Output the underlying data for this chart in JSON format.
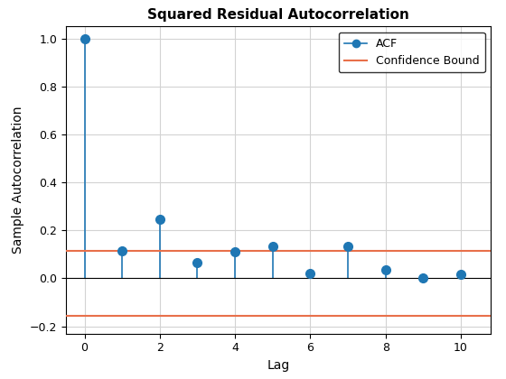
{
  "title": "Squared Residual Autocorrelation",
  "xlabel": "Lag",
  "ylabel": "Sample Autocorrelation",
  "lags": [
    0,
    1,
    2,
    3,
    4,
    5,
    6,
    7,
    8,
    9,
    10
  ],
  "acf_values": [
    1.0,
    0.115,
    0.245,
    0.065,
    0.11,
    0.135,
    0.02,
    0.135,
    0.035,
    0.0,
    0.015
  ],
  "conf_upper": 0.115,
  "conf_lower": -0.155,
  "stem_color": "#1f77b4",
  "conf_color": "#e8704a",
  "marker_size": 7,
  "ylim": [
    -0.23,
    1.05
  ],
  "xlim": [
    -0.5,
    10.8
  ],
  "grid_color": "#d3d3d3",
  "background_color": "#ffffff",
  "title_fontsize": 11,
  "label_fontsize": 10,
  "tick_fontsize": 9,
  "legend_fontsize": 9,
  "yticks": [
    -0.2,
    0.0,
    0.2,
    0.4,
    0.6,
    0.8,
    1.0
  ],
  "xticks": [
    0,
    2,
    4,
    6,
    8,
    10
  ]
}
